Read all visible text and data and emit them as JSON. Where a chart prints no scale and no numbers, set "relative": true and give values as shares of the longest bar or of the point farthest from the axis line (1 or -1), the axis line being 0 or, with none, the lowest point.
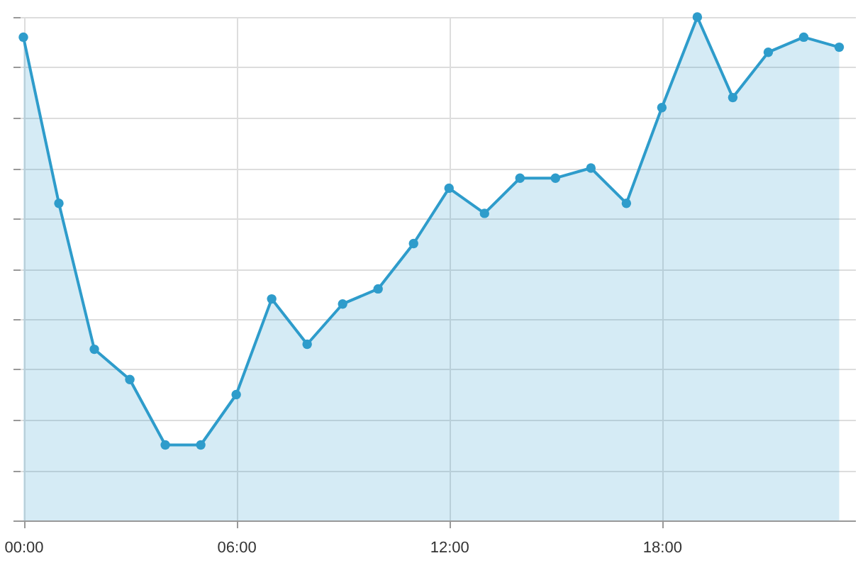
{
  "chart_data": {
    "type": "area",
    "relative": true,
    "x": [
      0,
      1,
      2,
      3,
      4,
      5,
      6,
      7,
      8,
      9,
      10,
      11,
      12,
      13,
      14,
      15,
      16,
      17,
      18,
      19,
      20,
      21,
      22,
      23
    ],
    "series": [
      {
        "color": "#2e9ccb",
        "values": [
          0.96,
          0.63,
          0.34,
          0.28,
          0.15,
          0.15,
          0.25,
          0.44,
          0.35,
          0.43,
          0.46,
          0.55,
          0.66,
          0.61,
          0.68,
          0.68,
          0.7,
          0.63,
          0.82,
          1,
          0.84,
          0.93,
          0.96,
          0.94
        ]
      }
    ],
    "xlim": [
      -0.1,
      23.45
    ],
    "xticks": [
      {
        "value": 0,
        "label": "00:00"
      },
      {
        "value": 6,
        "label": "06:00"
      },
      {
        "value": 12,
        "label": "12:00"
      },
      {
        "value": 18,
        "label": "18:00"
      }
    ],
    "grid": true,
    "marker": "circle",
    "line_style": "solid"
  }
}
